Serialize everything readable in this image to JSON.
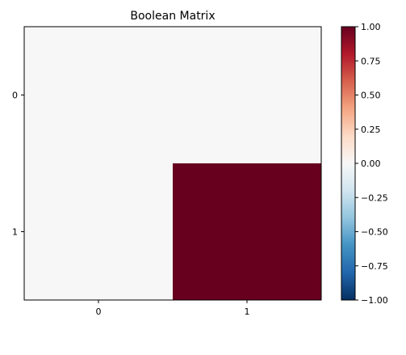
{
  "chart_data": {
    "type": "heatmap",
    "title": "Boolean Matrix",
    "x_ticks": [
      "0",
      "1"
    ],
    "y_ticks": [
      "0",
      "1"
    ],
    "matrix": [
      [
        0,
        0
      ],
      [
        0,
        1
      ]
    ],
    "colormap": "RdBu_r",
    "vmin": -1.0,
    "vmax": 1.0,
    "colorbar": {
      "ticks": [
        1.0,
        0.75,
        0.5,
        0.25,
        0.0,
        -0.25,
        -0.5,
        -0.75,
        -1.0
      ],
      "tick_labels": [
        "1.00",
        "0.75",
        "0.50",
        "0.25",
        "0.00",
        "−0.25",
        "−0.50",
        "−0.75",
        "−1.00"
      ],
      "placement": "right"
    },
    "grid": false,
    "colors": {
      "zero": "#f7f7f7",
      "one": "#67001f"
    }
  }
}
